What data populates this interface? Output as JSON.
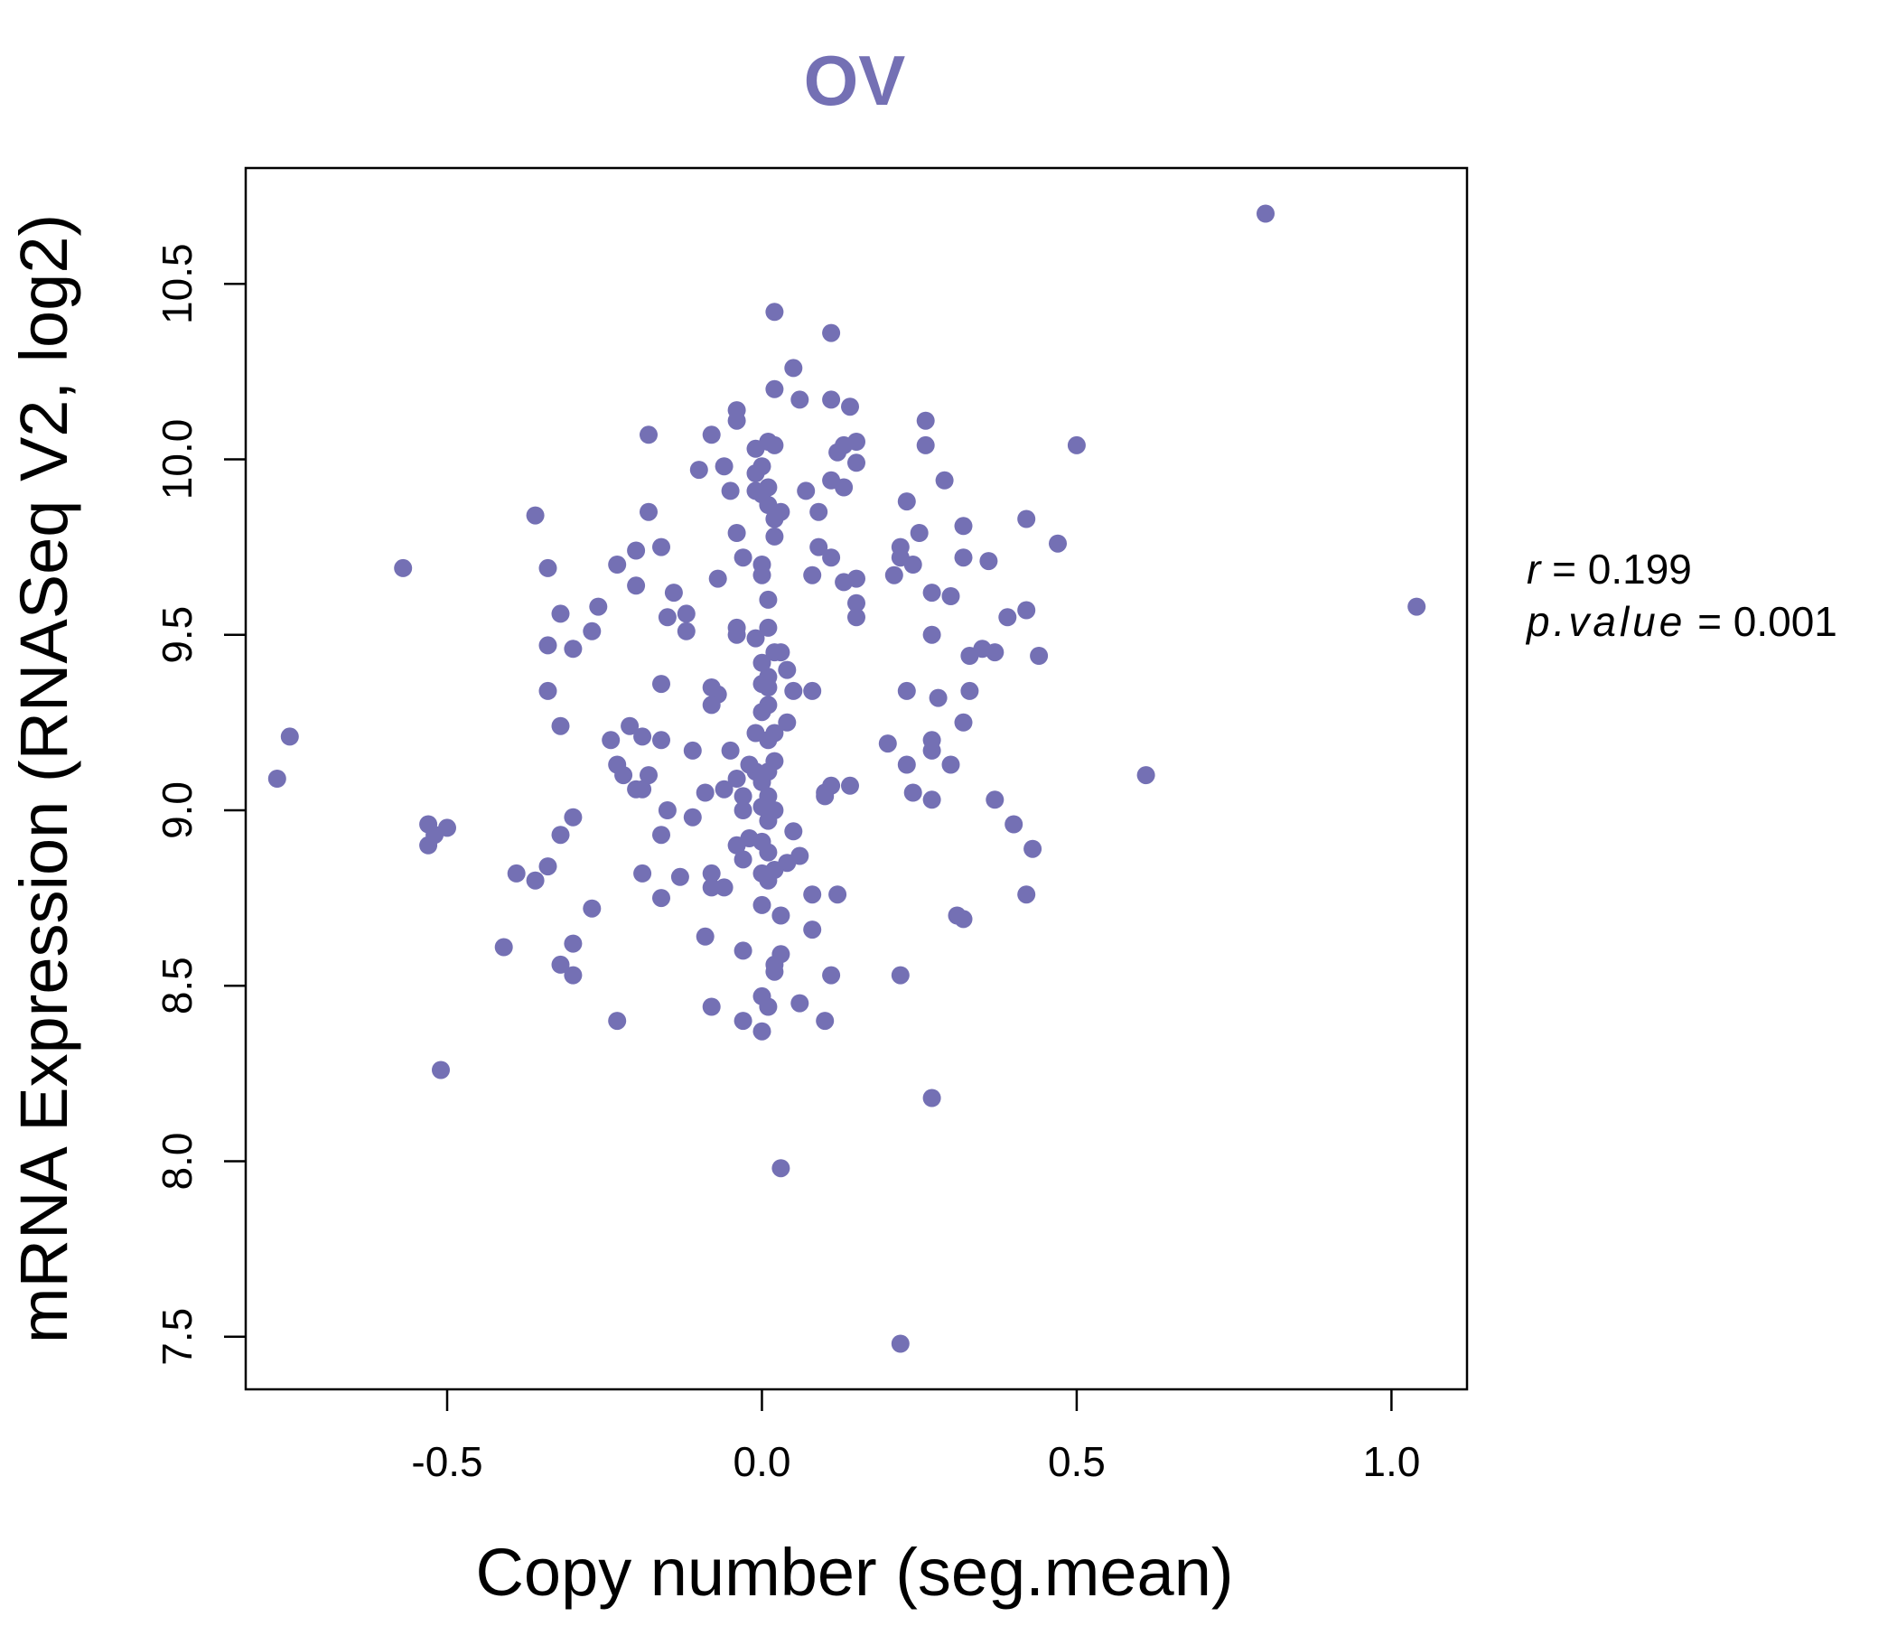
{
  "chart_data": {
    "type": "scatter",
    "title": "OV",
    "xlabel": "Copy number (seg.mean)",
    "ylabel": "mRNA Expression (RNASeq V2, log2)",
    "xlim": [
      -0.82,
      1.12
    ],
    "ylim": [
      7.35,
      10.83
    ],
    "xticks": [
      -0.5,
      0.0,
      0.5,
      1.0
    ],
    "xtick_labels": [
      "-0.5",
      "0.0",
      "0.5",
      "1.0"
    ],
    "yticks": [
      7.5,
      8.0,
      8.5,
      9.0,
      9.5,
      10.0,
      10.5
    ],
    "ytick_labels": [
      "7.5",
      "8.0",
      "8.5",
      "9.0",
      "9.5",
      "10.0",
      "10.5"
    ],
    "grid": false,
    "point_color": "#7470B4",
    "stats": {
      "r_label": "r",
      "r_value": "0.199",
      "p_label": "p.value",
      "p_value": "0.001",
      "equals": "="
    },
    "points": [
      [
        0.8,
        10.7
      ],
      [
        1.04,
        9.58
      ],
      [
        0.61,
        9.1
      ],
      [
        0.5,
        10.04
      ],
      [
        0.47,
        9.76
      ],
      [
        0.44,
        9.44
      ],
      [
        0.43,
        8.89
      ],
      [
        0.42,
        9.83
      ],
      [
        0.42,
        9.57
      ],
      [
        0.42,
        8.76
      ],
      [
        0.4,
        8.96
      ],
      [
        0.39,
        9.55
      ],
      [
        0.37,
        9.45
      ],
      [
        0.37,
        9.03
      ],
      [
        0.36,
        9.71
      ],
      [
        0.35,
        9.46
      ],
      [
        0.33,
        9.44
      ],
      [
        0.33,
        9.34
      ],
      [
        0.32,
        9.81
      ],
      [
        0.32,
        9.72
      ],
      [
        0.32,
        9.25
      ],
      [
        0.32,
        8.69
      ],
      [
        0.31,
        8.7
      ],
      [
        0.3,
        9.61
      ],
      [
        0.3,
        9.13
      ],
      [
        0.29,
        9.94
      ],
      [
        0.28,
        9.32
      ],
      [
        0.27,
        9.5
      ],
      [
        0.27,
        9.62
      ],
      [
        0.27,
        9.2
      ],
      [
        0.27,
        9.17
      ],
      [
        0.27,
        9.03
      ],
      [
        0.27,
        8.18
      ],
      [
        0.26,
        10.11
      ],
      [
        0.26,
        10.04
      ],
      [
        0.25,
        9.79
      ],
      [
        0.24,
        9.7
      ],
      [
        0.23,
        9.88
      ],
      [
        0.23,
        9.34
      ],
      [
        0.23,
        9.13
      ],
      [
        0.24,
        9.05
      ],
      [
        0.22,
        9.75
      ],
      [
        0.22,
        9.72
      ],
      [
        0.21,
        9.67
      ],
      [
        0.2,
        9.19
      ],
      [
        0.22,
        8.53
      ],
      [
        0.22,
        7.48
      ],
      [
        0.15,
        10.05
      ],
      [
        0.14,
        10.15
      ],
      [
        0.15,
        9.99
      ],
      [
        0.15,
        9.66
      ],
      [
        0.15,
        9.59
      ],
      [
        0.15,
        9.55
      ],
      [
        0.14,
        9.07
      ],
      [
        0.13,
        10.04
      ],
      [
        0.13,
        9.92
      ],
      [
        0.13,
        9.65
      ],
      [
        0.12,
        10.02
      ],
      [
        0.12,
        8.76
      ],
      [
        0.11,
        10.17
      ],
      [
        0.11,
        10.36
      ],
      [
        0.11,
        9.94
      ],
      [
        0.11,
        9.72
      ],
      [
        0.11,
        9.07
      ],
      [
        0.1,
        9.04
      ],
      [
        0.1,
        9.05
      ],
      [
        0.11,
        8.53
      ],
      [
        0.1,
        8.4
      ],
      [
        0.09,
        9.75
      ],
      [
        0.09,
        9.85
      ],
      [
        0.08,
        9.67
      ],
      [
        0.08,
        9.34
      ],
      [
        0.08,
        8.76
      ],
      [
        0.08,
        8.66
      ],
      [
        0.07,
        9.91
      ],
      [
        0.06,
        10.17
      ],
      [
        0.06,
        8.87
      ],
      [
        0.06,
        8.45
      ],
      [
        0.05,
        10.26
      ],
      [
        0.05,
        9.34
      ],
      [
        0.05,
        8.94
      ],
      [
        0.04,
        9.4
      ],
      [
        0.04,
        9.25
      ],
      [
        0.04,
        8.85
      ],
      [
        0.03,
        9.45
      ],
      [
        0.03,
        9.85
      ],
      [
        0.03,
        8.7
      ],
      [
        0.03,
        8.59
      ],
      [
        0.03,
        7.98
      ],
      [
        0.02,
        10.42
      ],
      [
        0.02,
        10.2
      ],
      [
        0.02,
        10.04
      ],
      [
        0.02,
        9.83
      ],
      [
        0.02,
        9.78
      ],
      [
        0.02,
        9.45
      ],
      [
        0.02,
        9.22
      ],
      [
        0.02,
        9.14
      ],
      [
        0.02,
        9.0
      ],
      [
        0.02,
        8.83
      ],
      [
        0.02,
        8.56
      ],
      [
        0.02,
        8.54
      ],
      [
        0.01,
        10.05
      ],
      [
        0.01,
        9.92
      ],
      [
        0.01,
        9.87
      ],
      [
        0.01,
        9.6
      ],
      [
        0.01,
        9.52
      ],
      [
        0.01,
        9.38
      ],
      [
        0.01,
        9.35
      ],
      [
        0.01,
        9.3
      ],
      [
        0.01,
        9.2
      ],
      [
        0.01,
        9.11
      ],
      [
        0.01,
        9.04
      ],
      [
        0.01,
        8.97
      ],
      [
        0.01,
        8.88
      ],
      [
        0.01,
        8.8
      ],
      [
        0.01,
        8.44
      ],
      [
        0.0,
        9.98
      ],
      [
        0.0,
        9.9
      ],
      [
        0.0,
        9.7
      ],
      [
        0.0,
        9.67
      ],
      [
        0.0,
        9.42
      ],
      [
        0.0,
        9.36
      ],
      [
        0.0,
        9.28
      ],
      [
        0.0,
        9.08
      ],
      [
        0.0,
        9.01
      ],
      [
        0.0,
        8.91
      ],
      [
        0.0,
        8.82
      ],
      [
        0.0,
        8.73
      ],
      [
        0.0,
        8.47
      ],
      [
        0.0,
        8.37
      ],
      [
        -0.01,
        10.03
      ],
      [
        -0.01,
        9.96
      ],
      [
        -0.01,
        9.91
      ],
      [
        -0.01,
        9.49
      ],
      [
        -0.01,
        9.22
      ],
      [
        -0.01,
        9.11
      ],
      [
        -0.02,
        9.13
      ],
      [
        -0.02,
        8.92
      ],
      [
        -0.03,
        9.72
      ],
      [
        -0.03,
        9.04
      ],
      [
        -0.03,
        9.0
      ],
      [
        -0.03,
        8.86
      ],
      [
        -0.03,
        8.6
      ],
      [
        -0.03,
        8.4
      ],
      [
        -0.04,
        10.14
      ],
      [
        -0.04,
        10.11
      ],
      [
        -0.04,
        9.79
      ],
      [
        -0.04,
        9.5
      ],
      [
        -0.04,
        9.52
      ],
      [
        -0.04,
        9.09
      ],
      [
        -0.04,
        8.9
      ],
      [
        -0.05,
        9.91
      ],
      [
        -0.05,
        9.17
      ],
      [
        -0.06,
        9.98
      ],
      [
        -0.06,
        8.78
      ],
      [
        -0.06,
        9.06
      ],
      [
        -0.07,
        9.66
      ],
      [
        -0.07,
        9.33
      ],
      [
        -0.08,
        9.35
      ],
      [
        -0.08,
        9.3
      ],
      [
        -0.08,
        8.82
      ],
      [
        -0.08,
        8.78
      ],
      [
        -0.08,
        8.44
      ],
      [
        -0.08,
        10.07
      ],
      [
        -0.09,
        8.64
      ],
      [
        -0.09,
        9.05
      ],
      [
        -0.1,
        9.97
      ],
      [
        -0.11,
        9.17
      ],
      [
        -0.11,
        8.98
      ],
      [
        -0.12,
        9.56
      ],
      [
        -0.12,
        9.51
      ],
      [
        -0.13,
        8.81
      ],
      [
        -0.14,
        9.62
      ],
      [
        -0.15,
        9.55
      ],
      [
        -0.15,
        9.0
      ],
      [
        -0.16,
        9.75
      ],
      [
        -0.16,
        9.36
      ],
      [
        -0.16,
        9.2
      ],
      [
        -0.16,
        8.93
      ],
      [
        -0.16,
        8.75
      ],
      [
        -0.18,
        10.07
      ],
      [
        -0.18,
        9.85
      ],
      [
        -0.18,
        9.1
      ],
      [
        -0.19,
        9.06
      ],
      [
        -0.19,
        9.21
      ],
      [
        -0.19,
        8.82
      ],
      [
        -0.2,
        9.74
      ],
      [
        -0.2,
        9.64
      ],
      [
        -0.2,
        9.06
      ],
      [
        -0.21,
        9.24
      ],
      [
        -0.22,
        9.1
      ],
      [
        -0.23,
        9.7
      ],
      [
        -0.23,
        9.13
      ],
      [
        -0.23,
        8.4
      ],
      [
        -0.24,
        9.2
      ],
      [
        -0.26,
        9.58
      ],
      [
        -0.27,
        9.51
      ],
      [
        -0.27,
        8.72
      ],
      [
        -0.3,
        8.98
      ],
      [
        -0.3,
        8.62
      ],
      [
        -0.3,
        8.53
      ],
      [
        -0.3,
        9.46
      ],
      [
        -0.32,
        9.56
      ],
      [
        -0.32,
        9.24
      ],
      [
        -0.32,
        8.93
      ],
      [
        -0.32,
        8.56
      ],
      [
        -0.34,
        9.69
      ],
      [
        -0.34,
        9.47
      ],
      [
        -0.34,
        9.34
      ],
      [
        -0.34,
        8.84
      ],
      [
        -0.36,
        9.84
      ],
      [
        -0.36,
        8.8
      ],
      [
        -0.39,
        8.82
      ],
      [
        -0.41,
        8.61
      ],
      [
        -0.51,
        8.26
      ],
      [
        -0.5,
        8.95
      ],
      [
        -0.53,
        8.9
      ],
      [
        -0.53,
        8.96
      ],
      [
        -0.52,
        8.93
      ],
      [
        -0.57,
        9.69
      ],
      [
        -0.75,
        9.21
      ],
      [
        -0.77,
        9.09
      ]
    ]
  }
}
